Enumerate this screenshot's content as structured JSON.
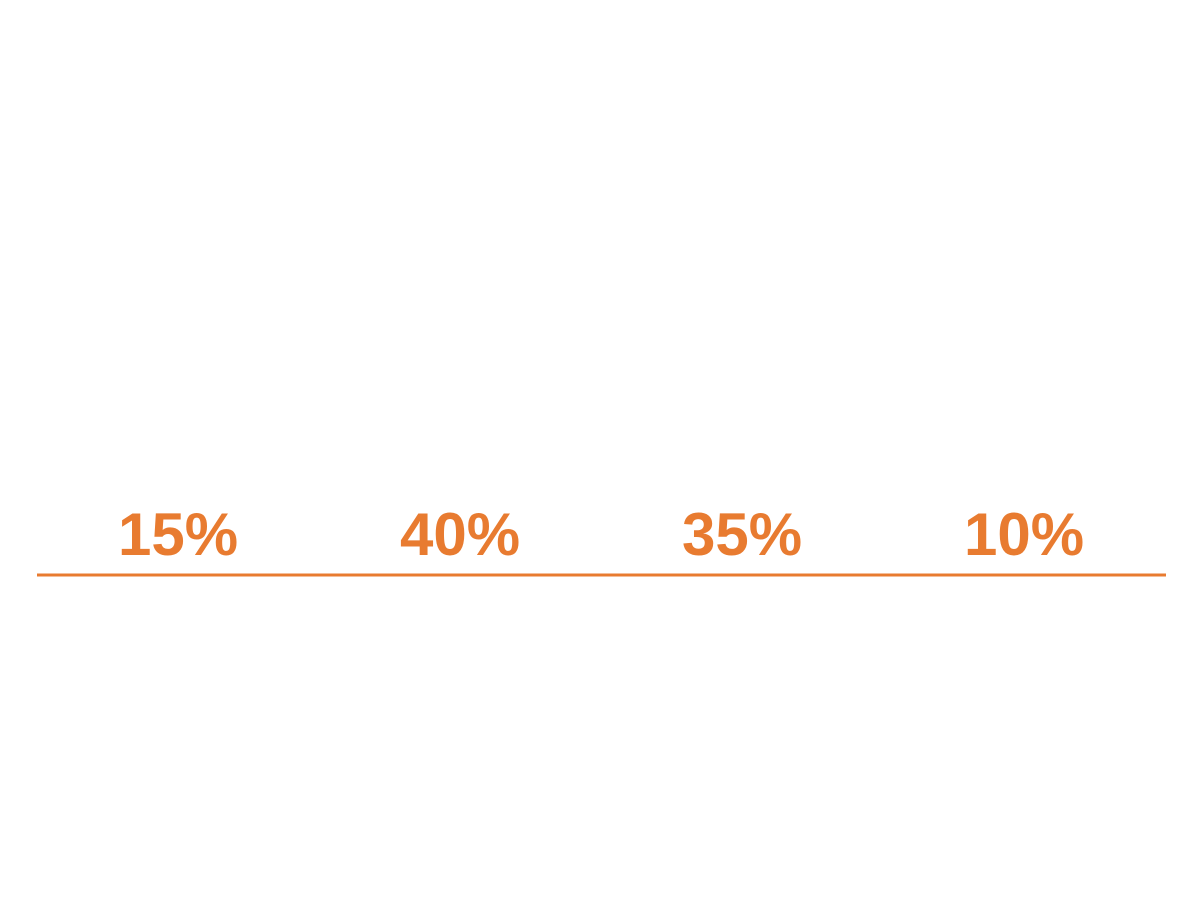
{
  "chart_data": {
    "type": "table",
    "categories": [],
    "values": [
      15,
      40,
      35,
      10
    ],
    "labels": [
      "15%",
      "40%",
      "35%",
      "10%"
    ],
    "unit": "%",
    "colors": {
      "accent": "#E87B30",
      "background": "#FFFFFF"
    }
  }
}
